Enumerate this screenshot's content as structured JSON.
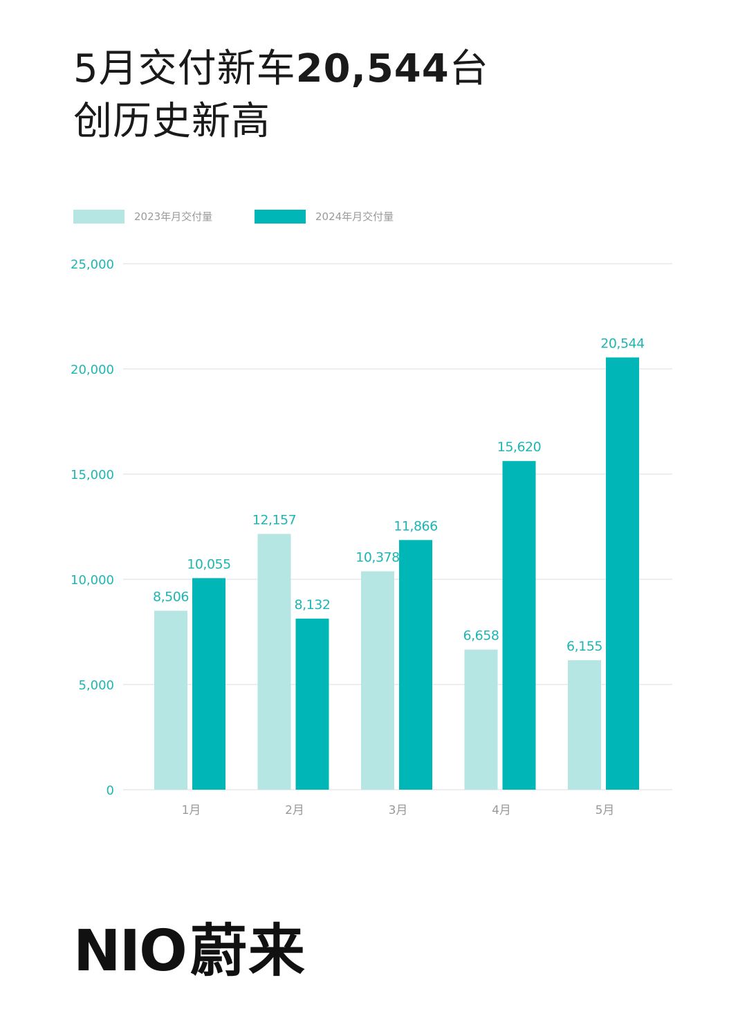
{
  "headline": {
    "line1_prefix": "5月交付新车",
    "line1_number": "20,544",
    "line1_suffix": "台",
    "line2": "创历史新高"
  },
  "legend": {
    "series2023": "2023年月交付量",
    "series2024": "2024年月交付量"
  },
  "colors": {
    "series2023": "#b6e6e4",
    "series2024": "#00b6b6",
    "label": "#1fb5b5",
    "grid": "#dcdcdc",
    "axis_text": "#999999"
  },
  "brand": {
    "latin": "NIO",
    "chinese": "蔚来"
  },
  "chart_data": {
    "type": "bar",
    "title": "5月交付新车20,544台 创历史新高",
    "categories": [
      "1月",
      "2月",
      "3月",
      "4月",
      "5月"
    ],
    "series": [
      {
        "name": "2023年月交付量",
        "values": [
          8506,
          12157,
          10378,
          6658,
          6155
        ],
        "labels": [
          "8,506",
          "12,157",
          "10,378",
          "6,658",
          "6,155"
        ]
      },
      {
        "name": "2024年月交付量",
        "values": [
          10055,
          8132,
          11866,
          15620,
          20544
        ],
        "labels": [
          "10,055",
          "8,132",
          "11,866",
          "15,620",
          "20,544"
        ]
      }
    ],
    "ylim": [
      0,
      25000
    ],
    "yticks": [
      0,
      5000,
      10000,
      15000,
      20000,
      25000
    ],
    "ytick_labels": [
      "0",
      "5,000",
      "10,000",
      "15,000",
      "20,000",
      "25,000"
    ],
    "xlabel": "",
    "ylabel": "",
    "grid": true,
    "legend_position": "top-left"
  }
}
